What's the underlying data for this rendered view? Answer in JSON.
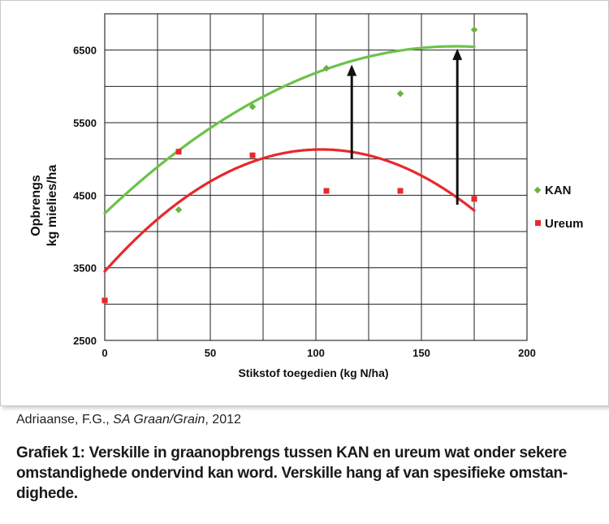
{
  "chart_data": {
    "type": "scatter",
    "xlabel": "Stikstof  toegedien (kg N/ha)",
    "ylabel_line1": "Opbrengs",
    "ylabel_line2": "kg mielies/ha",
    "xlim": [
      0,
      200
    ],
    "ylim": [
      2500,
      7000
    ],
    "x_ticks": [
      0,
      50,
      100,
      150,
      200
    ],
    "y_ticks": [
      2500,
      3500,
      4500,
      5500,
      6500
    ],
    "x_grid_step": 25,
    "y_grid_step": 500,
    "grid": true,
    "legend_position": "right",
    "series": [
      {
        "name": "KAN",
        "color": "#6cb33f",
        "marker": "diamond",
        "points": [
          [
            0,
            3050
          ],
          [
            35,
            4300
          ],
          [
            70,
            5720
          ],
          [
            105,
            6250
          ],
          [
            140,
            5900
          ],
          [
            175,
            6780
          ]
        ],
        "trend": {
          "a": -0.08315,
          "b": 27.67,
          "c": 4250,
          "x_range": [
            0,
            175
          ],
          "color": "#6cc24a"
        }
      },
      {
        "name": "Ureum",
        "color": "#e8282c",
        "marker": "square",
        "points": [
          [
            0,
            3050
          ],
          [
            35,
            5100
          ],
          [
            70,
            5050
          ],
          [
            105,
            4560
          ],
          [
            140,
            4560
          ],
          [
            175,
            4450
          ]
        ],
        "trend": {
          "a": -0.16,
          "b": 32.8,
          "c": 3450,
          "x_range": [
            0,
            175
          ],
          "color": "#e8282c"
        }
      }
    ],
    "arrows": [
      {
        "x": 117,
        "y_from": 5000,
        "y_to": 6300
      },
      {
        "x": 167,
        "y_from": 4370,
        "y_to": 6520
      }
    ]
  },
  "source": {
    "author": "Adriaanse, F.G., ",
    "publication": "SA Graan/Grain",
    "year": ", 2012"
  },
  "caption": "Grafiek 1: Verskille in graanopbrengs tussen KAN en ureum wat onder sekere omstandighede ondervind kan word. Verskille hang af van spesifieke omstan-dighede."
}
